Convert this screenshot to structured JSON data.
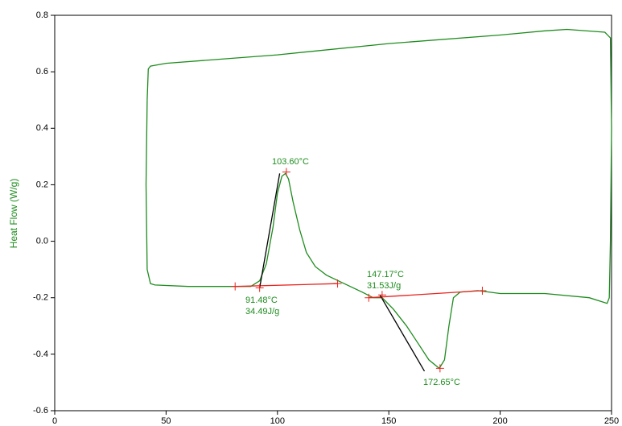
{
  "chart_data": {
    "type": "line",
    "ylabel": "Heat Flow (W/g)",
    "xlim": [
      0,
      250
    ],
    "xticks": [
      0,
      50,
      100,
      150,
      200,
      250
    ],
    "ylim": [
      -0.6,
      0.8
    ],
    "yticks": [
      -0.6,
      -0.4,
      -0.2,
      {
        "value": 0,
        "label": "0.0"
      },
      0.2,
      0.4,
      0.6,
      0.8
    ],
    "series": [
      {
        "color": "#1e8c1e",
        "x": [
          41.5,
          41,
          41.5,
          43,
          45,
          60,
          80,
          88,
          92,
          95,
          98,
          100,
          102,
          103.6,
          105,
          107,
          110,
          113,
          117,
          122,
          130,
          138,
          143,
          147,
          152,
          158,
          163,
          168,
          172.65,
          175,
          177,
          179,
          182,
          190,
          200,
          220,
          240,
          248,
          249,
          249.5,
          250,
          249.5,
          247,
          230,
          220,
          200,
          150,
          100,
          50,
          43,
          42,
          41.5
        ],
        "values": [
          0.5,
          0.2,
          -0.1,
          -0.15,
          -0.155,
          -0.16,
          -0.16,
          -0.16,
          -0.14,
          -0.08,
          0.05,
          0.17,
          0.23,
          0.24,
          0.22,
          0.14,
          0.04,
          -0.04,
          -0.09,
          -0.12,
          -0.15,
          -0.18,
          -0.2,
          -0.2,
          -0.24,
          -0.3,
          -0.36,
          -0.42,
          -0.45,
          -0.42,
          -0.3,
          -0.2,
          -0.18,
          -0.175,
          -0.185,
          -0.185,
          -0.2,
          -0.22,
          -0.2,
          0.0,
          0.4,
          0.72,
          0.74,
          0.75,
          0.745,
          0.73,
          0.7,
          0.66,
          0.63,
          0.62,
          0.61,
          0.5
        ]
      },
      {
        "color": "#e8231e",
        "x": [
          81,
          127
        ],
        "values": [
          -0.16,
          -0.15
        ]
      },
      {
        "color": "#e8231e",
        "x": [
          141,
          192
        ],
        "values": [
          -0.2,
          -0.175
        ]
      },
      {
        "color": "#000000",
        "x": [
          92,
          101
        ],
        "values": [
          -0.165,
          0.24
        ]
      },
      {
        "color": "#000000",
        "x": [
          146,
          166
        ],
        "values": [
          -0.19,
          -0.46
        ]
      },
      {
        "color": "#e8231e",
        "marker": "+",
        "x": [
          81,
          92,
          104,
          127,
          141,
          147,
          173,
          192
        ],
        "values": [
          -0.16,
          -0.165,
          0.245,
          -0.15,
          -0.2,
          -0.19,
          -0.45,
          -0.175
        ]
      }
    ],
    "annotations": [
      "103.60°C",
      "91.48°C",
      "34.49J/g",
      "147.17°C",
      "31.53J/g",
      "172.65°C"
    ]
  }
}
